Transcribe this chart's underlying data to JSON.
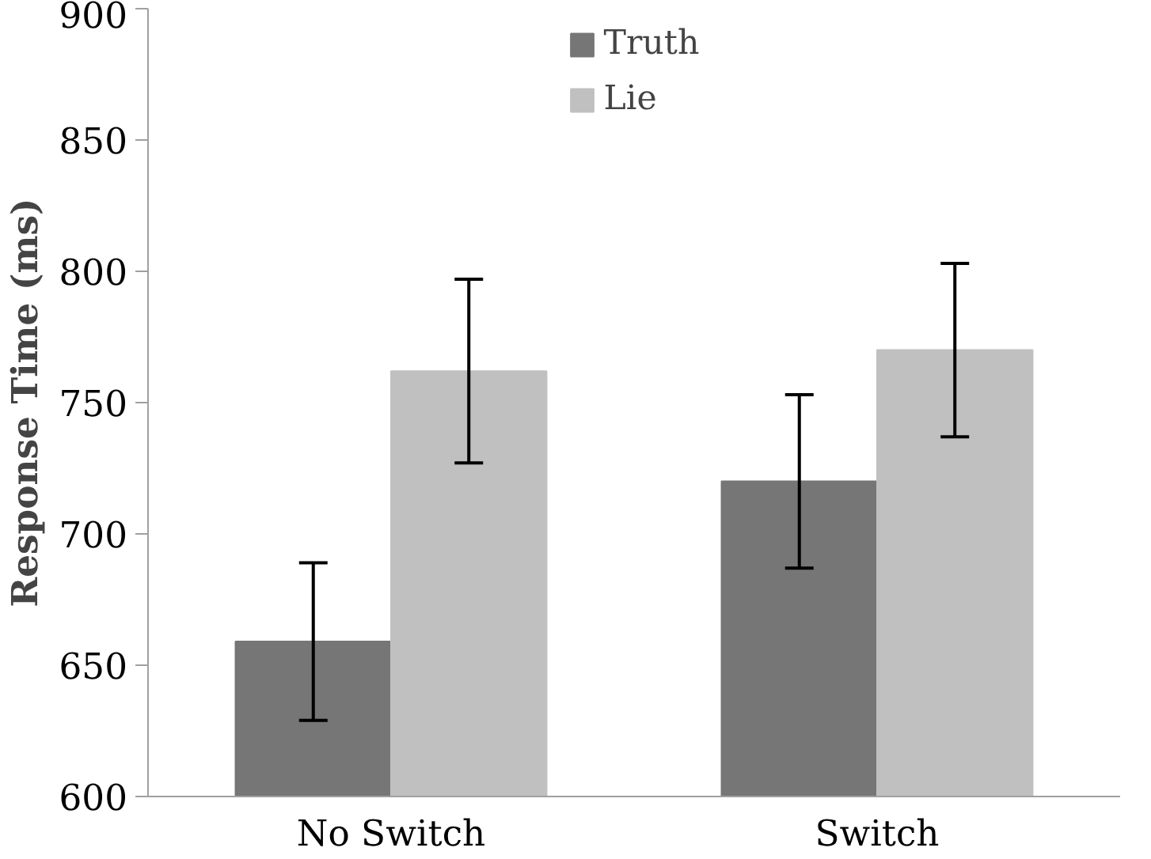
{
  "chart_data": {
    "type": "bar",
    "ylabel": "Response Time (ms)",
    "categories": [
      "No Switch",
      "Switch"
    ],
    "series": [
      {
        "name": "Truth",
        "color": "#767676",
        "values": [
          659,
          720
        ],
        "errors": [
          30,
          33
        ]
      },
      {
        "name": "Lie",
        "color": "#c0c0c0",
        "values": [
          762,
          770
        ],
        "errors": [
          35,
          33
        ]
      }
    ],
    "ylim": [
      600,
      900
    ],
    "yticks": [
      600,
      650,
      700,
      750,
      800,
      850,
      900
    ],
    "grid": false,
    "legend": "top"
  }
}
